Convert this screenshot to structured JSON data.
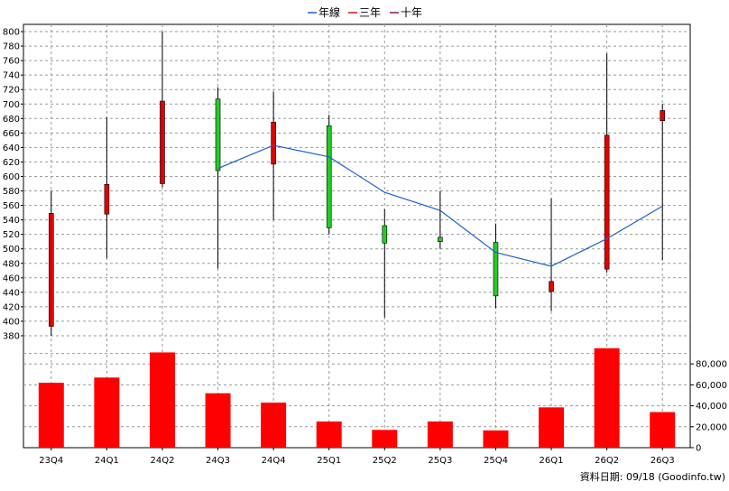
{
  "legend": [
    {
      "label": "年線",
      "color": "#1e62c8"
    },
    {
      "label": "三年",
      "color": "#e01010"
    },
    {
      "label": "十年",
      "color": "#8a1a5a"
    }
  ],
  "footer": {
    "source_text": "資料日期: 09/18  (Goodinfo.tw)"
  },
  "colors": {
    "up": "#e00000",
    "down": "#22cc22",
    "line": "#1e62c8",
    "volume": "#ff0000"
  },
  "chart_data": [
    {
      "type": "candlestick",
      "categories": [
        "23Q4",
        "24Q1",
        "24Q2",
        "24Q3",
        "24Q4",
        "25Q1",
        "25Q2",
        "25Q3",
        "25Q4",
        "26Q1",
        "26Q2",
        "26Q3"
      ],
      "ylim": [
        370,
        810
      ],
      "yticks": [
        380,
        400,
        420,
        440,
        460,
        480,
        500,
        520,
        540,
        560,
        580,
        600,
        620,
        640,
        660,
        680,
        700,
        720,
        740,
        760,
        780,
        800
      ],
      "grid": true,
      "ohlc": [
        {
          "open": 393,
          "high": 580,
          "low": 380,
          "close": 549
        },
        {
          "open": 548,
          "high": 682,
          "low": 487,
          "close": 589
        },
        {
          "open": 590,
          "high": 800,
          "low": 585,
          "close": 704
        },
        {
          "open": 707,
          "high": 723,
          "low": 473,
          "close": 608
        },
        {
          "open": 617,
          "high": 717,
          "low": 540,
          "close": 675
        },
        {
          "open": 670,
          "high": 685,
          "low": 520,
          "close": 529
        },
        {
          "open": 532,
          "high": 555,
          "low": 405,
          "close": 508
        },
        {
          "open": 516,
          "high": 580,
          "low": 500,
          "close": 510
        },
        {
          "open": 509,
          "high": 535,
          "low": 418,
          "close": 435
        },
        {
          "open": 441,
          "high": 570,
          "low": 414,
          "close": 455
        },
        {
          "open": 472,
          "high": 770,
          "low": 467,
          "close": 657
        },
        {
          "open": 677,
          "high": 700,
          "low": 484,
          "close": 691
        }
      ],
      "series": [
        {
          "name": "年線",
          "values": [
            null,
            null,
            null,
            611,
            643,
            627,
            578,
            553,
            495,
            476,
            514,
            559
          ]
        }
      ]
    },
    {
      "type": "bar",
      "categories": [
        "23Q4",
        "24Q1",
        "24Q2",
        "24Q3",
        "24Q4",
        "25Q1",
        "25Q2",
        "25Q3",
        "25Q4",
        "26Q1",
        "26Q2",
        "26Q3"
      ],
      "values": [
        62000,
        67000,
        91000,
        52000,
        43000,
        25000,
        17000,
        25000,
        16500,
        38500,
        95000,
        34000
      ],
      "ylim": [
        0,
        100000
      ],
      "yticks": [
        0,
        20000,
        40000,
        60000,
        80000
      ],
      "ytick_labels": [
        "0",
        "20,000",
        "40,000",
        "60,000",
        "80,000"
      ],
      "grid": true
    }
  ]
}
